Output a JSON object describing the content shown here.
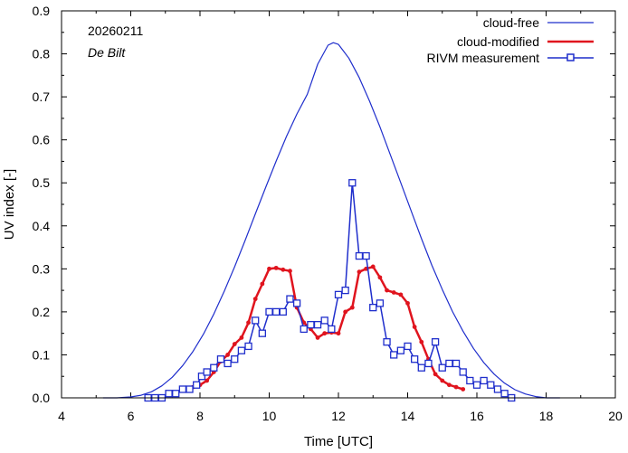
{
  "chart_data": {
    "type": "line",
    "xlabel": "Time  [UTC]",
    "ylabel": "UV index  [-]",
    "xlim": [
      4,
      20
    ],
    "ylim": [
      0,
      0.9
    ],
    "xticks": [
      4,
      6,
      8,
      10,
      12,
      14,
      16,
      18,
      20
    ],
    "yticks": [
      0.0,
      0.1,
      0.2,
      0.3,
      0.4,
      0.5,
      0.6,
      0.7,
      0.8,
      0.9
    ],
    "ytick_labels": [
      "0.0",
      "0.1",
      "0.2",
      "0.3",
      "0.4",
      "0.5",
      "0.6",
      "0.7",
      "0.8",
      "0.9"
    ],
    "annotations": {
      "date": "20260211",
      "location": "De Bilt"
    },
    "legend_position": "top-right",
    "colors": {
      "cloud_free": "#1f2ecc",
      "cloud_modified": "#e0141e",
      "rivm": "#1f2ecc"
    },
    "series": [
      {
        "name": "cloud-free",
        "style": "line",
        "x": [
          5.2,
          5.6,
          6.0,
          6.3,
          6.6,
          6.9,
          7.2,
          7.5,
          7.8,
          8.1,
          8.4,
          8.7,
          9.0,
          9.3,
          9.6,
          9.9,
          10.2,
          10.5,
          10.8,
          11.1,
          11.4,
          11.7,
          11.85,
          12.0,
          12.3,
          12.6,
          12.9,
          13.2,
          13.5,
          13.8,
          14.1,
          14.4,
          14.7,
          15.0,
          15.3,
          15.6,
          15.9,
          16.2,
          16.5,
          16.8,
          17.1,
          17.4,
          17.7,
          18.0,
          18.4
        ],
        "y": [
          0.0,
          0.0,
          0.002,
          0.006,
          0.014,
          0.028,
          0.048,
          0.075,
          0.108,
          0.148,
          0.195,
          0.248,
          0.305,
          0.365,
          0.428,
          0.49,
          0.55,
          0.608,
          0.66,
          0.706,
          0.776,
          0.82,
          0.826,
          0.822,
          0.79,
          0.745,
          0.69,
          0.63,
          0.565,
          0.5,
          0.435,
          0.37,
          0.308,
          0.252,
          0.2,
          0.155,
          0.115,
          0.082,
          0.055,
          0.034,
          0.019,
          0.009,
          0.003,
          0.0,
          0.0
        ]
      },
      {
        "name": "cloud-modified",
        "style": "line-dots",
        "x": [
          7.6,
          7.8,
          8.0,
          8.2,
          8.4,
          8.6,
          8.8,
          9.0,
          9.2,
          9.4,
          9.6,
          9.8,
          10.0,
          10.2,
          10.4,
          10.6,
          10.8,
          11.0,
          11.2,
          11.4,
          11.6,
          11.8,
          12.0,
          12.2,
          12.4,
          12.6,
          12.8,
          13.0,
          13.2,
          13.4,
          13.6,
          13.8,
          14.0,
          14.2,
          14.4,
          14.6,
          14.8,
          15.0,
          15.2,
          15.4,
          15.6
        ],
        "y": [
          0.02,
          0.025,
          0.03,
          0.04,
          0.06,
          0.085,
          0.1,
          0.125,
          0.14,
          0.175,
          0.23,
          0.265,
          0.3,
          0.302,
          0.298,
          0.295,
          0.21,
          0.175,
          0.16,
          0.14,
          0.15,
          0.152,
          0.15,
          0.2,
          0.21,
          0.293,
          0.3,
          0.305,
          0.28,
          0.25,
          0.245,
          0.24,
          0.22,
          0.165,
          0.13,
          0.09,
          0.055,
          0.04,
          0.03,
          0.025,
          0.02
        ]
      },
      {
        "name": "RIVM measurement",
        "style": "line-squares",
        "x": [
          6.5,
          6.7,
          6.9,
          7.1,
          7.3,
          7.5,
          7.7,
          7.9,
          8.05,
          8.2,
          8.4,
          8.6,
          8.8,
          9.0,
          9.2,
          9.4,
          9.6,
          9.8,
          10.0,
          10.2,
          10.4,
          10.6,
          10.8,
          11.0,
          11.2,
          11.4,
          11.6,
          11.8,
          12.0,
          12.2,
          12.4,
          12.6,
          12.8,
          13.0,
          13.2,
          13.4,
          13.6,
          13.8,
          14.0,
          14.2,
          14.4,
          14.6,
          14.8,
          15.0,
          15.2,
          15.4,
          15.6,
          15.8,
          16.0,
          16.2,
          16.4,
          16.6,
          16.8,
          17.0
        ],
        "y": [
          0.0,
          0.0,
          0.0,
          0.01,
          0.01,
          0.02,
          0.02,
          0.03,
          0.05,
          0.06,
          0.07,
          0.09,
          0.08,
          0.09,
          0.11,
          0.12,
          0.18,
          0.15,
          0.2,
          0.2,
          0.2,
          0.23,
          0.22,
          0.16,
          0.17,
          0.17,
          0.18,
          0.16,
          0.24,
          0.25,
          0.5,
          0.33,
          0.33,
          0.21,
          0.22,
          0.13,
          0.1,
          0.11,
          0.12,
          0.09,
          0.07,
          0.08,
          0.13,
          0.07,
          0.08,
          0.08,
          0.06,
          0.04,
          0.03,
          0.04,
          0.03,
          0.02,
          0.01,
          0.0
        ]
      }
    ]
  }
}
